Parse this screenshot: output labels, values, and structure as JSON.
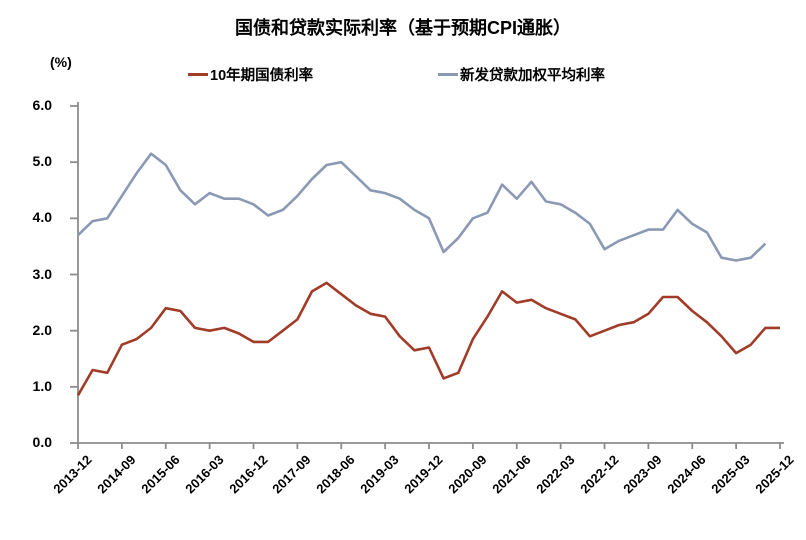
{
  "chart": {
    "title": "国债和贷款实际利率（基于预期CPI通胀）",
    "unit": "(%)",
    "type": "line",
    "grid": false,
    "legend_position": "top",
    "axis_color": "#8C8C8C",
    "text_color": "#000000",
    "ylim": [
      0,
      6
    ],
    "y_tick_labels": [
      "0.0",
      "1.0",
      "2.0",
      "3.0",
      "4.0",
      "5.0",
      "6.0"
    ],
    "x_tick_every": 3,
    "x_tick_labels": [
      "2013-12",
      "2014-09",
      "2015-06",
      "2016-03",
      "2016-12",
      "2017-09",
      "2018-06",
      "2019-03",
      "2019-12",
      "2020-09",
      "2021-06",
      "2022-03",
      "2022-12",
      "2023-09",
      "2024-06",
      "2025-03",
      "2025-12"
    ],
    "categories": [
      "2013-12",
      "2014-03",
      "2014-06",
      "2014-09",
      "2014-12",
      "2015-03",
      "2015-06",
      "2015-09",
      "2015-12",
      "2016-03",
      "2016-06",
      "2016-09",
      "2016-12",
      "2017-03",
      "2017-06",
      "2017-09",
      "2017-12",
      "2018-03",
      "2018-06",
      "2018-09",
      "2018-12",
      "2019-03",
      "2019-06",
      "2019-09",
      "2019-12",
      "2020-03",
      "2020-06",
      "2020-09",
      "2020-12",
      "2021-03",
      "2021-06",
      "2021-09",
      "2021-12",
      "2022-03",
      "2022-06",
      "2022-09",
      "2022-12",
      "2023-03",
      "2023-06",
      "2023-09",
      "2023-12",
      "2024-03",
      "2024-06",
      "2024-09",
      "2024-12",
      "2025-03",
      "2025-06",
      "2025-09",
      "2025-12"
    ],
    "series": [
      {
        "name": "10年期国债利率",
        "color": "#A03C28",
        "values": [
          0.85,
          1.3,
          1.25,
          1.75,
          1.85,
          2.05,
          2.4,
          2.35,
          2.05,
          2.0,
          2.05,
          1.95,
          1.8,
          1.8,
          2.0,
          2.2,
          2.7,
          2.85,
          2.65,
          2.45,
          2.3,
          2.25,
          1.9,
          1.65,
          1.7,
          1.15,
          1.25,
          1.85,
          2.25,
          2.7,
          2.5,
          2.55,
          2.4,
          2.3,
          2.2,
          1.9,
          2.0,
          2.1,
          2.15,
          2.3,
          2.6,
          2.6,
          2.35,
          2.15,
          1.9,
          1.6,
          1.75,
          2.05,
          2.05
        ]
      },
      {
        "name": "新发贷款加权平均利率",
        "color": "#8B99B4",
        "values": [
          3.7,
          3.95,
          4.0,
          4.4,
          4.8,
          5.15,
          4.95,
          4.5,
          4.25,
          4.45,
          4.35,
          4.35,
          4.25,
          4.05,
          4.15,
          4.4,
          4.7,
          4.95,
          5.0,
          4.75,
          4.5,
          4.45,
          4.35,
          4.15,
          4.0,
          3.4,
          3.65,
          4.0,
          4.1,
          4.6,
          4.35,
          4.65,
          4.3,
          4.25,
          4.1,
          3.9,
          3.45,
          3.6,
          3.7,
          3.8,
          3.8,
          4.15,
          3.9,
          3.75,
          3.3,
          3.25,
          3.3,
          3.55,
          null
        ]
      }
    ]
  }
}
